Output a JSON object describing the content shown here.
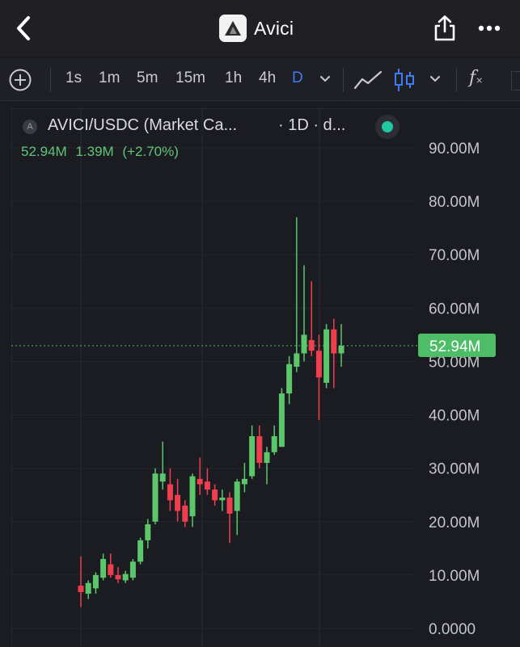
{
  "header": {
    "app_title": "Avici",
    "icons": [
      "chevron-left-icon",
      "avici-logo-icon",
      "share-icon",
      "more-icon"
    ]
  },
  "toolbar": {
    "timeframes": [
      "1s",
      "1m",
      "5m",
      "15m",
      "1h",
      "4h",
      "D"
    ],
    "active_timeframe": "D",
    "fx_label": "f",
    "icons": [
      "add-circle-icon",
      "chevron-down-icon",
      "line-chart-icon",
      "candlestick-icon",
      "indicator-fx-icon"
    ]
  },
  "legend": {
    "symbol_badge": "A",
    "symbol": "AVICI/USDC (Market Ca...",
    "interval": "· 1D · d...",
    "last": "52.94M",
    "change": "1.39M",
    "change_pct": "(+2.70%)"
  },
  "colors": {
    "up": "#5cc66b",
    "down": "#ef3f4f",
    "accent": "#3d7cf2",
    "status": "#1fc7a3",
    "price_line": "#4dbd68"
  },
  "chart_data": {
    "type": "candlestick",
    "title": "AVICI/USDC (Market Ca...",
    "interval": "1D",
    "ylim": [
      0,
      95
    ],
    "y_unit": "M",
    "y_ticks": [
      "0.0000",
      "10.00M",
      "20.00M",
      "30.00M",
      "40.00M",
      "50.00M",
      "60.00M",
      "70.00M",
      "80.00M",
      "90.00M"
    ],
    "last_price": 52.94,
    "last_price_label": "52.94M",
    "candles": [
      {
        "o": 8.0,
        "h": 13.5,
        "l": 4.0,
        "c": 6.8
      },
      {
        "o": 6.5,
        "h": 9.0,
        "l": 5.5,
        "c": 8.5
      },
      {
        "o": 7.5,
        "h": 10.5,
        "l": 6.5,
        "c": 10.0
      },
      {
        "o": 9.5,
        "h": 14.0,
        "l": 9.0,
        "c": 13.0
      },
      {
        "o": 12.0,
        "h": 14.0,
        "l": 9.5,
        "c": 10.0
      },
      {
        "o": 10.0,
        "h": 11.5,
        "l": 8.5,
        "c": 9.2
      },
      {
        "o": 9.0,
        "h": 10.8,
        "l": 8.5,
        "c": 10.2
      },
      {
        "o": 9.5,
        "h": 13.0,
        "l": 9.0,
        "c": 12.5
      },
      {
        "o": 12.5,
        "h": 17.0,
        "l": 12.0,
        "c": 16.5
      },
      {
        "o": 16.5,
        "h": 20.5,
        "l": 15.0,
        "c": 19.5
      },
      {
        "o": 20.0,
        "h": 30.0,
        "l": 19.5,
        "c": 29.0
      },
      {
        "o": 27.5,
        "h": 35.0,
        "l": 26.0,
        "c": 29.0
      },
      {
        "o": 27.0,
        "h": 30.0,
        "l": 22.0,
        "c": 24.0
      },
      {
        "o": 25.0,
        "h": 28.0,
        "l": 20.0,
        "c": 22.0
      },
      {
        "o": 23.0,
        "h": 24.0,
        "l": 19.0,
        "c": 20.0
      },
      {
        "o": 21.0,
        "h": 29.0,
        "l": 19.0,
        "c": 28.5
      },
      {
        "o": 28.0,
        "h": 32.0,
        "l": 25.0,
        "c": 27.0
      },
      {
        "o": 27.5,
        "h": 30.0,
        "l": 25.0,
        "c": 26.0
      },
      {
        "o": 26.0,
        "h": 27.0,
        "l": 23.0,
        "c": 24.0
      },
      {
        "o": 24.0,
        "h": 26.0,
        "l": 22.0,
        "c": 24.5
      },
      {
        "o": 24.5,
        "h": 25.5,
        "l": 16.0,
        "c": 21.5
      },
      {
        "o": 22.0,
        "h": 28.0,
        "l": 17.5,
        "c": 27.5
      },
      {
        "o": 27.0,
        "h": 31.0,
        "l": 25.5,
        "c": 28.0
      },
      {
        "o": 28.5,
        "h": 38.0,
        "l": 28.0,
        "c": 36.0
      },
      {
        "o": 36.0,
        "h": 38.0,
        "l": 30.0,
        "c": 31.0
      },
      {
        "o": 31.0,
        "h": 34.0,
        "l": 27.0,
        "c": 33.0
      },
      {
        "o": 33.0,
        "h": 38.0,
        "l": 32.5,
        "c": 36.0
      },
      {
        "o": 34.0,
        "h": 45.0,
        "l": 34.0,
        "c": 44.0
      },
      {
        "o": 44.0,
        "h": 51.0,
        "l": 42.0,
        "c": 49.5
      },
      {
        "o": 49.0,
        "h": 77.0,
        "l": 48.0,
        "c": 51.5
      },
      {
        "o": 51.5,
        "h": 68.0,
        "l": 50.0,
        "c": 55.0
      },
      {
        "o": 54.0,
        "h": 65.0,
        "l": 51.0,
        "c": 52.0
      },
      {
        "o": 52.0,
        "h": 55.0,
        "l": 39.0,
        "c": 47.0
      },
      {
        "o": 46.0,
        "h": 57.0,
        "l": 45.0,
        "c": 56.0
      },
      {
        "o": 56.0,
        "h": 58.0,
        "l": 45.0,
        "c": 51.5
      },
      {
        "o": 51.5,
        "h": 57.0,
        "l": 49.0,
        "c": 52.94
      }
    ]
  }
}
